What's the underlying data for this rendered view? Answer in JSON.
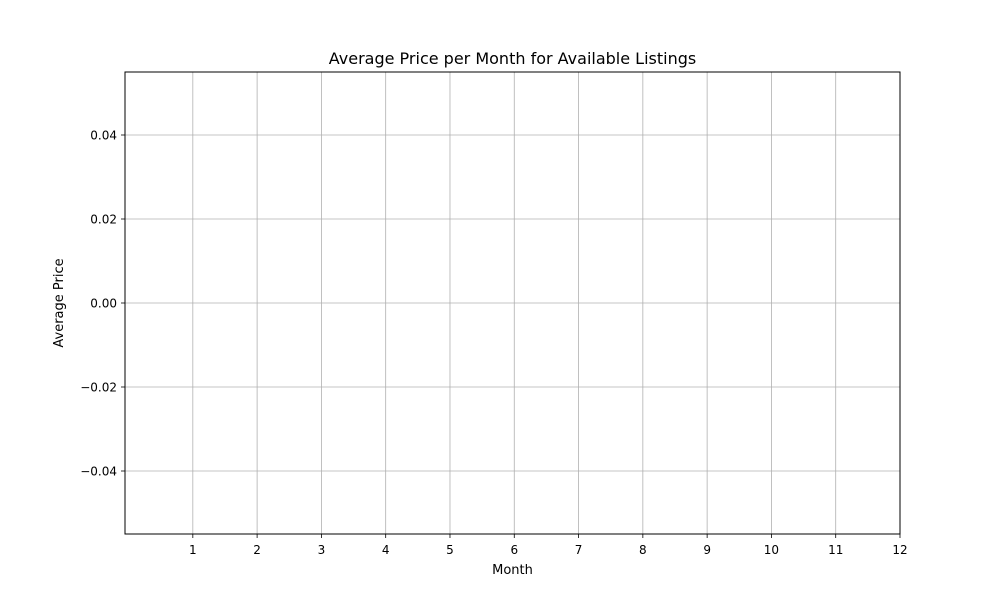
{
  "chart_data": {
    "type": "line",
    "title": "Average Price per Month for Available Listings",
    "xlabel": "Month",
    "ylabel": "Average Price",
    "x_ticks": [
      1,
      2,
      3,
      4,
      5,
      6,
      7,
      8,
      9,
      10,
      11,
      12
    ],
    "x_tick_labels": [
      "1",
      "2",
      "3",
      "4",
      "5",
      "6",
      "7",
      "8",
      "9",
      "10",
      "11",
      "12"
    ],
    "y_ticks": [
      0.04,
      0.02,
      0.0,
      -0.02,
      -0.04
    ],
    "y_tick_labels": [
      "0.04",
      "0.02",
      "0.00",
      "−0.02",
      "−0.04"
    ],
    "xlim": [
      -0.055,
      12
    ],
    "ylim": [
      -0.055,
      0.055
    ],
    "grid": true,
    "series": [],
    "colors": {
      "grid": "#b0b0b0",
      "axes": "#000000",
      "background": "#ffffff"
    }
  }
}
